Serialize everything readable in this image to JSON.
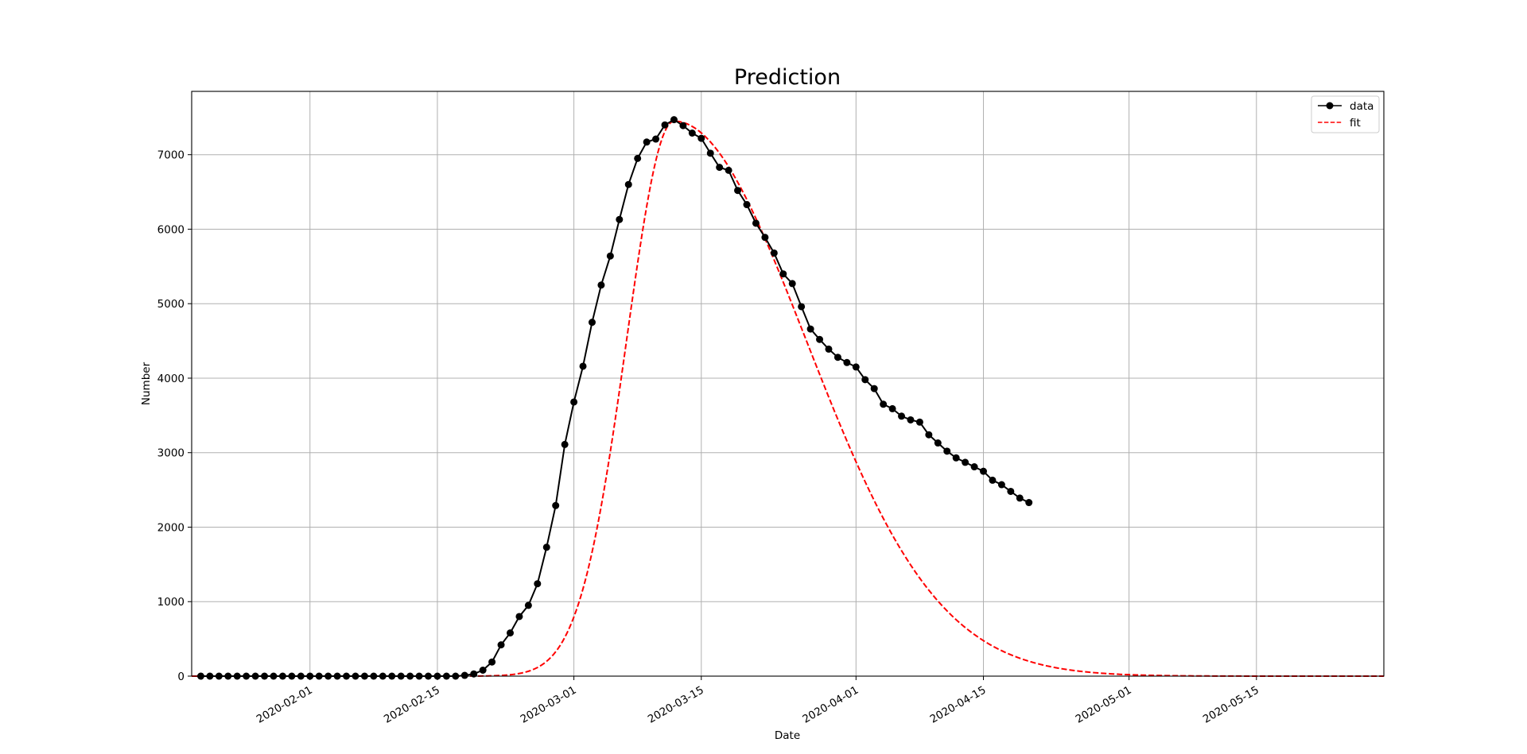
{
  "chart_data": {
    "type": "line",
    "title": "Prediction",
    "xlabel": "Date",
    "ylabel": "Number",
    "x_axis_type": "date",
    "xlim": [
      "2020-01-19",
      "2020-05-29"
    ],
    "ylim": [
      0,
      7850
    ],
    "grid": true,
    "legend_position": "top-right",
    "x_ticks": [
      "2020-02-01",
      "2020-02-15",
      "2020-03-01",
      "2020-03-15",
      "2020-04-01",
      "2020-04-15",
      "2020-05-01",
      "2020-05-15"
    ],
    "y_ticks": [
      0,
      1000,
      2000,
      3000,
      4000,
      5000,
      6000,
      7000
    ],
    "series": [
      {
        "name": "data",
        "style": "solid line with circle markers",
        "color": "#000000",
        "start_date": "2020-01-20",
        "step_days": 1,
        "values": [
          0,
          0,
          0,
          0,
          0,
          0,
          0,
          0,
          0,
          0,
          0,
          0,
          0,
          0,
          0,
          0,
          0,
          0,
          0,
          0,
          0,
          0,
          0,
          0,
          0,
          0,
          0,
          0,
          0,
          10,
          30,
          80,
          190,
          420,
          580,
          800,
          950,
          1240,
          1730,
          2290,
          3110,
          3680,
          4160,
          4750,
          5250,
          5640,
          6130,
          6600,
          6950,
          7170,
          7210,
          7400,
          7470,
          7390,
          7290,
          7220,
          7020,
          6830,
          6790,
          6520,
          6330,
          6080,
          5890,
          5680,
          5400,
          5270,
          4960,
          4660,
          4520,
          4390,
          4280,
          4210,
          4150,
          3980,
          3860,
          3650,
          3590,
          3490,
          3440,
          3410,
          3240,
          3130,
          3020,
          2930,
          2870,
          2810,
          2750,
          2630,
          2570,
          2480,
          2390,
          2330
        ]
      },
      {
        "name": "fit",
        "style": "dashed line",
        "color": "#ff0000",
        "peak_date": "2020-03-12",
        "peak_value": 7450,
        "rise_sigma_days": 5.2,
        "fall_sigma_days": 14.5,
        "start_date": "2020-01-19",
        "end_date": "2020-05-29"
      }
    ]
  }
}
